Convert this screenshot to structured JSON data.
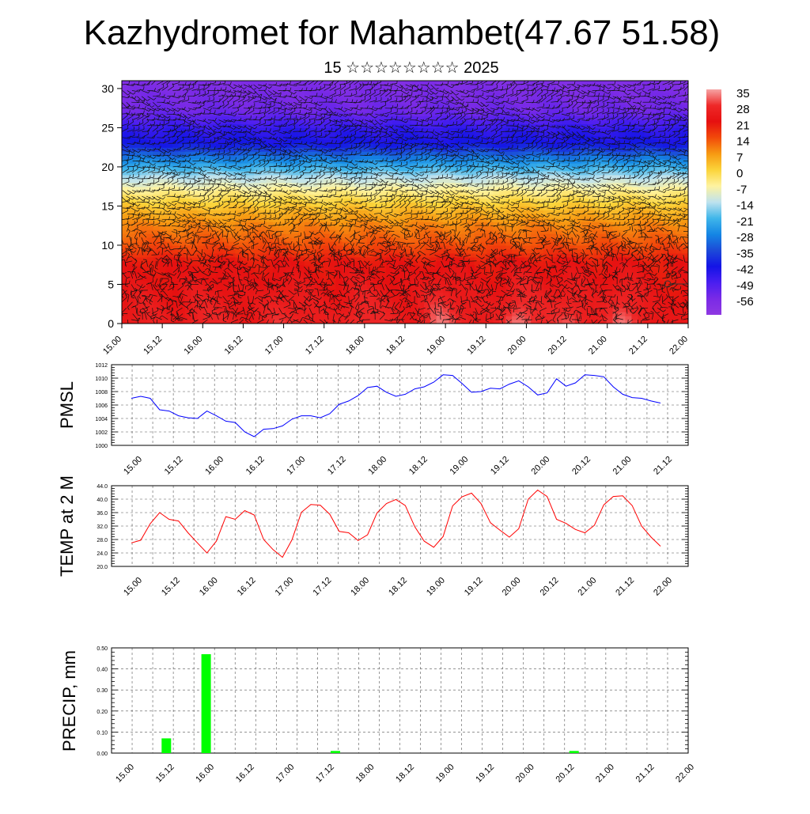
{
  "title": "Kazhydromet for Mahambet(47.67 51.58)",
  "subtitle": "15 ☆☆☆☆☆☆☆☆ 2025",
  "time_ticks": [
    "15.00",
    "15.12",
    "16.00",
    "16.12",
    "17.00",
    "17.12",
    "18.00",
    "18.12",
    "19.00",
    "19.12",
    "20.00",
    "20.12",
    "21.00",
    "21.12",
    "22.00"
  ],
  "colorbar": {
    "labels": [
      "35",
      "28",
      "21",
      "14",
      "7",
      "0",
      "-7",
      "-14",
      "-21",
      "-28",
      "-35",
      "-42",
      "-49",
      "-56"
    ],
    "stops": [
      {
        "v": 35,
        "c": "#f6a4a4"
      },
      {
        "v": 28,
        "c": "#ee2828"
      },
      {
        "v": 21,
        "c": "#e61010"
      },
      {
        "v": 14,
        "c": "#f24a0a"
      },
      {
        "v": 7,
        "c": "#f79a12"
      },
      {
        "v": 0,
        "c": "#fbd43a"
      },
      {
        "v": -7,
        "c": "#fef3a0"
      },
      {
        "v": -14,
        "c": "#bfe2ee"
      },
      {
        "v": -21,
        "c": "#40b6ea"
      },
      {
        "v": -28,
        "c": "#1486e4"
      },
      {
        "v": -35,
        "c": "#1c4ad8"
      },
      {
        "v": -42,
        "c": "#1414e6"
      },
      {
        "v": -49,
        "c": "#4a1ef0"
      },
      {
        "v": -56,
        "c": "#7a2ae6"
      },
      {
        "v": -63,
        "c": "#8e38e2"
      }
    ]
  },
  "chart_data": [
    {
      "type": "heatmap",
      "title": "Kazhydromet for Mahambet(47.67 51.58)",
      "ylim": [
        0,
        31
      ],
      "y_ticks": [
        "0",
        "5",
        "10",
        "15",
        "20",
        "25",
        "30"
      ],
      "x_range": [
        15.0,
        22.0
      ],
      "temperature_profile": [
        {
          "z": 0,
          "t": 24
        },
        {
          "z": 4,
          "t": 22
        },
        {
          "z": 8,
          "t": 20
        },
        {
          "z": 10,
          "t": 14
        },
        {
          "z": 13,
          "t": 8
        },
        {
          "z": 15,
          "t": 2
        },
        {
          "z": 17,
          "t": -6
        },
        {
          "z": 19,
          "t": -16
        },
        {
          "z": 21,
          "t": -28
        },
        {
          "z": 23,
          "t": -42
        },
        {
          "z": 25,
          "t": -46
        },
        {
          "z": 27,
          "t": -54
        },
        {
          "z": 31,
          "t": -58
        }
      ],
      "surface_warm_cells": [
        {
          "x": 15.9,
          "amp": 4
        },
        {
          "x": 16.9,
          "amp": 5
        },
        {
          "x": 17.9,
          "amp": 6
        },
        {
          "x": 18.9,
          "amp": 9
        },
        {
          "x": 19.9,
          "amp": 10
        },
        {
          "x": 20.6,
          "amp": 7
        },
        {
          "x": 21.2,
          "amp": 6
        }
      ]
    },
    {
      "type": "line",
      "ylabel": "PMSL",
      "ylim": [
        1000,
        1012
      ],
      "y_ticks": [
        "1000",
        "1002",
        "1004",
        "1006",
        "1008",
        "1010",
        "1012"
      ],
      "x_range": [
        15.0,
        22.0
      ],
      "x": [
        15.0,
        15.125,
        15.25,
        15.375,
        15.5,
        15.625,
        15.75,
        15.875,
        16.0,
        16.125,
        16.25,
        16.375,
        16.5,
        16.625,
        16.75,
        16.875,
        17.0,
        17.125,
        17.25,
        17.375,
        17.5,
        17.625,
        17.75,
        17.875,
        18.0,
        18.125,
        18.25,
        18.375,
        18.5,
        18.625,
        18.75,
        18.875,
        19.0,
        19.125,
        19.25,
        19.375,
        19.5,
        19.625,
        19.75,
        19.875,
        20.0,
        20.125,
        20.25,
        20.375,
        20.5,
        20.625,
        20.75,
        20.875,
        21.0,
        21.125,
        21.25,
        21.375,
        21.5,
        21.625,
        21.75,
        21.875,
        22.0
      ],
      "series": [
        {
          "color": "#0000ff",
          "values": [
            1007.0,
            1007.3,
            1007.0,
            1005.3,
            1005.1,
            1004.4,
            1004.1,
            1004.0,
            1005.1,
            1004.4,
            1003.6,
            1003.4,
            1002.0,
            1001.3,
            1002.4,
            1002.5,
            1002.9,
            1003.9,
            1004.4,
            1004.4,
            1004.1,
            1004.7,
            1006.1,
            1006.6,
            1007.4,
            1008.6,
            1008.8,
            1007.9,
            1007.3,
            1007.6,
            1008.4,
            1008.7,
            1009.4,
            1010.5,
            1010.4,
            1009.2,
            1007.9,
            1008.0,
            1008.5,
            1008.4,
            1009.1,
            1009.6,
            1008.7,
            1007.5,
            1007.8,
            1009.9,
            1008.8,
            1009.3,
            1010.5,
            1010.4,
            1010.2,
            1008.7,
            1007.6,
            1007.1,
            1007.0,
            1006.6,
            1006.3
          ]
        }
      ]
    },
    {
      "type": "line",
      "ylabel": "TEMP at 2 M",
      "ylim": [
        20.0,
        44.0
      ],
      "y_ticks": [
        "20.0",
        "24.0",
        "28.0",
        "32.0",
        "36.0",
        "40.0",
        "44.0"
      ],
      "x_range": [
        15.0,
        22.0
      ],
      "x": [
        15.0,
        15.125,
        15.25,
        15.375,
        15.5,
        15.625,
        15.75,
        15.875,
        16.0,
        16.125,
        16.25,
        16.375,
        16.5,
        16.625,
        16.75,
        16.875,
        17.0,
        17.125,
        17.25,
        17.375,
        17.5,
        17.625,
        17.75,
        17.875,
        18.0,
        18.125,
        18.25,
        18.375,
        18.5,
        18.625,
        18.75,
        18.875,
        19.0,
        19.125,
        19.25,
        19.375,
        19.5,
        19.625,
        19.75,
        19.875,
        20.0,
        20.125,
        20.25,
        20.375,
        20.5,
        20.625,
        20.75,
        20.875,
        21.0,
        21.125,
        21.25,
        21.375,
        21.5,
        21.625,
        21.75,
        21.875,
        22.0
      ],
      "series": [
        {
          "color": "#ff0000",
          "values": [
            27.0,
            27.8,
            32.7,
            36.0,
            34.0,
            33.5,
            30.0,
            27.0,
            24.0,
            27.5,
            34.8,
            34.0,
            36.6,
            35.3,
            28.0,
            25.0,
            22.7,
            27.9,
            36.1,
            38.4,
            38.2,
            35.5,
            30.4,
            30.0,
            27.7,
            29.4,
            35.9,
            38.7,
            39.9,
            38.1,
            31.8,
            27.5,
            25.7,
            28.9,
            38.0,
            40.7,
            41.8,
            38.7,
            33.0,
            30.8,
            28.7,
            31.2,
            40.0,
            42.7,
            40.8,
            34.0,
            32.8,
            31.0,
            30.0,
            32.2,
            38.3,
            40.8,
            41.0,
            38.1,
            32.0,
            28.7,
            26.0
          ]
        }
      ]
    },
    {
      "type": "bar",
      "ylabel": "PRECIP, mm",
      "ylim": [
        0.0,
        0.5
      ],
      "y_ticks": [
        "0.00",
        "0.10",
        "0.20",
        "0.30",
        "0.40",
        "0.50"
      ],
      "x_range": [
        15.0,
        22.0
      ],
      "bars": [
        {
          "x": 15.5,
          "value": 0.07
        },
        {
          "x": 16.0,
          "value": 0.47
        },
        {
          "x": 17.625,
          "value": 0.01
        },
        {
          "x": 20.625,
          "value": 0.01
        }
      ],
      "color": "#00ff00"
    }
  ]
}
